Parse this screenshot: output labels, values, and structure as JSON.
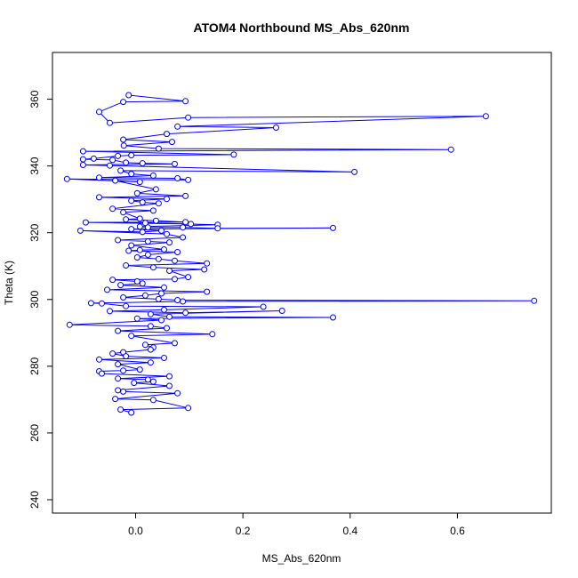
{
  "chart_data": {
    "type": "line",
    "title": "ATOM4 Northbound MS_Abs_620nm",
    "xlabel": "MS_Abs_620nm",
    "ylabel": "Theta (K)",
    "xlim": [
      -0.155,
      0.775
    ],
    "ylim": [
      236,
      374
    ],
    "xticks": [
      "0.0",
      "0.2",
      "0.4",
      "0.6"
    ],
    "xtick_values": [
      0.0,
      0.2,
      0.4,
      0.6
    ],
    "yticks": [
      "240",
      "260",
      "280",
      "300",
      "320",
      "340",
      "360"
    ],
    "ytick_values": [
      240,
      260,
      280,
      300,
      320,
      340,
      360
    ],
    "grid": false,
    "legend": "none",
    "series_color": "#0000ff",
    "markers": "open-circle",
    "points": [
      [
        -0.013,
        361.2
      ],
      [
        0.093,
        359.4
      ],
      [
        -0.023,
        359.2
      ],
      [
        -0.068,
        356.2
      ],
      [
        -0.048,
        352.9
      ],
      [
        0.098,
        354.5
      ],
      [
        0.653,
        354.9
      ],
      [
        0.078,
        351.8
      ],
      [
        0.262,
        351.5
      ],
      [
        0.058,
        349.6
      ],
      [
        -0.023,
        347.9
      ],
      [
        0.068,
        347.2
      ],
      [
        -0.022,
        346.1
      ],
      [
        0.043,
        345.2
      ],
      [
        0.588,
        344.9
      ],
      [
        -0.098,
        344.4
      ],
      [
        0.183,
        343.4
      ],
      [
        -0.008,
        343.2
      ],
      [
        -0.033,
        343.0
      ],
      [
        -0.078,
        342.2
      ],
      [
        -0.098,
        342.0
      ],
      [
        -0.043,
        341.8
      ],
      [
        -0.018,
        341.0
      ],
      [
        0.013,
        340.8
      ],
      [
        0.073,
        340.6
      ],
      [
        -0.098,
        340.3
      ],
      [
        -0.048,
        340.1
      ],
      [
        0.408,
        338.2
      ],
      [
        -0.028,
        338.6
      ],
      [
        -0.008,
        337.6
      ],
      [
        0.033,
        337.1
      ],
      [
        -0.068,
        336.5
      ],
      [
        0.078,
        336.3
      ],
      [
        0.098,
        335.8
      ],
      [
        -0.128,
        336.1
      ],
      [
        0.008,
        335.2
      ],
      [
        -0.038,
        335.6
      ],
      [
        0.038,
        333.0
      ],
      [
        0.003,
        331.8
      ],
      [
        0.093,
        331.0
      ],
      [
        -0.068,
        330.6
      ],
      [
        0.058,
        330.1
      ],
      [
        -0.008,
        329.6
      ],
      [
        0.013,
        329.1
      ],
      [
        0.043,
        328.8
      ],
      [
        -0.043,
        327.2
      ],
      [
        0.033,
        326.6
      ],
      [
        -0.023,
        326.1
      ],
      [
        0.008,
        324.2
      ],
      [
        -0.018,
        324.0
      ],
      [
        0.038,
        323.6
      ],
      [
        0.093,
        323.2
      ],
      [
        -0.093,
        323.1
      ],
      [
        0.103,
        322.6
      ],
      [
        0.018,
        322.9
      ],
      [
        0.153,
        322.4
      ],
      [
        0.008,
        321.8
      ],
      [
        0.023,
        321.6
      ],
      [
        0.088,
        321.6
      ],
      [
        0.153,
        321.3
      ],
      [
        0.368,
        321.4
      ],
      [
        -0.008,
        321.1
      ],
      [
        0.048,
        320.6
      ],
      [
        0.013,
        320.2
      ],
      [
        -0.103,
        320.6
      ],
      [
        0.058,
        319.6
      ],
      [
        0.088,
        318.6
      ],
      [
        -0.033,
        317.8
      ],
      [
        0.023,
        317.4
      ],
      [
        0.063,
        317.1
      ],
      [
        -0.008,
        316.2
      ],
      [
        0.053,
        315.0
      ],
      [
        0.008,
        314.8
      ],
      [
        -0.013,
        314.6
      ],
      [
        0.078,
        314.2
      ],
      [
        0.023,
        313.4
      ],
      [
        0.003,
        312.6
      ],
      [
        0.043,
        312.1
      ],
      [
        0.073,
        311.6
      ],
      [
        0.133,
        310.8
      ],
      [
        -0.018,
        310.2
      ],
      [
        0.033,
        309.6
      ],
      [
        0.128,
        309.0
      ],
      [
        0.063,
        308.6
      ],
      [
        0.098,
        306.7
      ],
      [
        0.073,
        306.1
      ],
      [
        -0.043,
        305.9
      ],
      [
        0.003,
        305.4
      ],
      [
        0.013,
        304.8
      ],
      [
        -0.028,
        304.3
      ],
      [
        0.053,
        303.6
      ],
      [
        -0.053,
        302.9
      ],
      [
        0.133,
        302.3
      ],
      [
        0.048,
        301.8
      ],
      [
        0.018,
        301.2
      ],
      [
        -0.023,
        300.6
      ],
      [
        0.043,
        300.1
      ],
      [
        0.078,
        299.8
      ],
      [
        0.743,
        299.6
      ],
      [
        0.088,
        299.4
      ],
      [
        -0.083,
        298.9
      ],
      [
        -0.063,
        298.8
      ],
      [
        -0.018,
        298.0
      ],
      [
        0.238,
        297.8
      ],
      [
        0.053,
        296.9
      ],
      [
        -0.048,
        296.5
      ],
      [
        0.093,
        296.0
      ],
      [
        0.273,
        296.6
      ],
      [
        0.028,
        295.6
      ],
      [
        0.063,
        294.8
      ],
      [
        0.368,
        294.6
      ],
      [
        0.003,
        294.3
      ],
      [
        0.048,
        293.8
      ],
      [
        -0.123,
        292.4
      ],
      [
        0.028,
        292.0
      ],
      [
        0.058,
        291.4
      ],
      [
        -0.033,
        290.6
      ],
      [
        0.143,
        289.6
      ],
      [
        -0.008,
        289.1
      ],
      [
        0.073,
        286.9
      ],
      [
        0.018,
        286.4
      ],
      [
        0.033,
        285.6
      ],
      [
        0.028,
        285.0
      ],
      [
        -0.023,
        284.2
      ],
      [
        -0.043,
        283.8
      ],
      [
        -0.018,
        283.0
      ],
      [
        0.053,
        282.5
      ],
      [
        -0.068,
        282.0
      ],
      [
        0.028,
        281.1
      ],
      [
        -0.033,
        280.6
      ],
      [
        0.008,
        279.0
      ],
      [
        -0.023,
        278.7
      ],
      [
        -0.068,
        278.5
      ],
      [
        -0.063,
        277.8
      ],
      [
        0.063,
        277.0
      ],
      [
        -0.033,
        276.3
      ],
      [
        0.023,
        276.0
      ],
      [
        0.033,
        275.4
      ],
      [
        -0.003,
        275.0
      ],
      [
        0.063,
        274.1
      ],
      [
        -0.033,
        272.8
      ],
      [
        -0.023,
        272.4
      ],
      [
        0.078,
        271.9
      ],
      [
        -0.038,
        270.2
      ],
      [
        0.033,
        269.9
      ],
      [
        0.098,
        267.5
      ],
      [
        -0.028,
        267.0
      ],
      [
        -0.008,
        266.1
      ]
    ]
  }
}
